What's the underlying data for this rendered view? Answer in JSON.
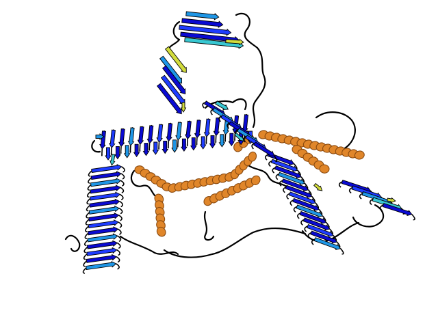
{
  "scene": {
    "kind": "protein-structure-render",
    "style": "cartoon",
    "background": "#ffffff",
    "colors": {
      "strand_dark": "#0a0ad2",
      "strand_mid": "#1e3cff",
      "strand_light": "#1e96e6",
      "strand_highlight": "#38c8d2",
      "strand_yellow": "#d2dc3c",
      "helix": "#e0862a",
      "helix_dark": "#8a4a10",
      "loop": "#000000"
    },
    "domains": [
      "top-beta-sandwich",
      "upper-beta-sandwich",
      "central-beta-solenoid",
      "left-beta-solenoid",
      "right-beta-solenoid",
      "far-right-beta-domain",
      "alpha-helices"
    ]
  }
}
